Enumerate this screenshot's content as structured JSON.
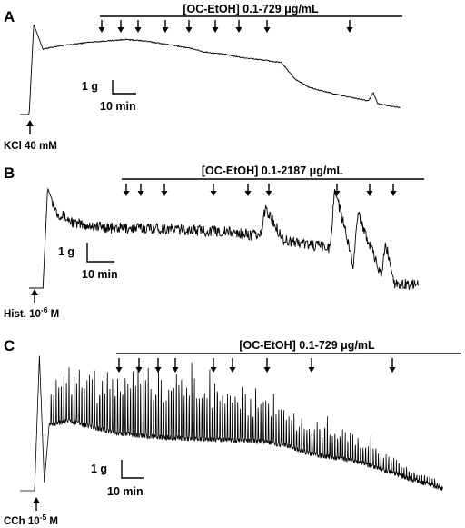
{
  "figure": {
    "panels": [
      {
        "id": "A",
        "letter": "A",
        "treatment_label": "[OC-EtOH] 0.1-729 μg/mL",
        "stimulus": {
          "agent": "KCl",
          "conc": "40 mM"
        },
        "scale_force": "1 g",
        "scale_time": "10 min",
        "noise": "low",
        "arrow_count": 9
      },
      {
        "id": "B",
        "letter": "B",
        "treatment_label": "[OC-EtOH] 0.1-2187 μg/mL",
        "stimulus": {
          "agent": "Hist. 10",
          "exp": "-6",
          "unit": " M"
        },
        "scale_force": "1 g",
        "scale_time": "10 min",
        "noise": "medium",
        "arrow_count": 10
      },
      {
        "id": "C",
        "letter": "C",
        "treatment_label": "[OC-EtOH] 0.1-729 μg/mL",
        "stimulus": {
          "agent": "CCh 10",
          "exp": "-5",
          "unit": " M"
        },
        "scale_force": "1 g",
        "scale_time": "10 min",
        "noise": "oscillatory",
        "arrow_count": 9
      }
    ]
  },
  "chart_data": [
    {
      "type": "line",
      "title": "",
      "panel": "A",
      "agonist": "KCl 40 mM",
      "treatment": "[OC-EtOH] 0.1-729 μg/mL",
      "scale_bar": {
        "force_g": 1,
        "time_min": 10
      },
      "x_unit": "min",
      "y_unit": "g",
      "series": [
        {
          "x": [
            0,
            2,
            3,
            5,
            8,
            15,
            23,
            27,
            33,
            38,
            40,
            45,
            48,
            53,
            57,
            60,
            63,
            65,
            70,
            76,
            77,
            78,
            83
          ],
          "y": [
            0,
            0,
            3.3,
            2.4,
            2.5,
            2.65,
            2.75,
            2.7,
            2.55,
            2.4,
            2.3,
            2.2,
            2.1,
            2.0,
            1.9,
            1.3,
            1.0,
            0.9,
            0.7,
            0.5,
            0.8,
            0.4,
            0.25
          ]
        }
      ]
    },
    {
      "type": "line",
      "title": "",
      "panel": "B",
      "agonist": "Hist. 10-6 M",
      "treatment": "[OC-EtOH] 0.1-2187 μg/mL",
      "scale_bar": {
        "force_g": 1,
        "time_min": 10
      },
      "x_unit": "min",
      "y_unit": "g",
      "series": [
        {
          "x": [
            0,
            3,
            4,
            6,
            10,
            18,
            27,
            35,
            43,
            50,
            51,
            55,
            60,
            65,
            66,
            70,
            71,
            76,
            77,
            79,
            84
          ],
          "y": [
            0,
            0,
            2.5,
            1.9,
            1.6,
            1.5,
            1.5,
            1.45,
            1.4,
            1.3,
            2.0,
            1.2,
            1.1,
            1.0,
            2.5,
            0.6,
            1.9,
            0.3,
            1.1,
            0.1,
            0.1
          ]
        }
      ]
    },
    {
      "type": "line",
      "title": "",
      "panel": "C",
      "agonist": "CCh 10-5 M",
      "treatment": "[OC-EtOH] 0.1-729 μg/mL",
      "scale_bar": {
        "force_g": 1,
        "time_min": 10
      },
      "x_unit": "min",
      "y_unit": "g",
      "series": [
        {
          "x": [
            0,
            3,
            4,
            5,
            6,
            10,
            20,
            30,
            40,
            50,
            55,
            60,
            70,
            80,
            87
          ],
          "y": [
            0,
            0,
            3.3,
            0.2,
            1.6,
            1.7,
            1.4,
            1.3,
            1.25,
            1.2,
            1.1,
            0.9,
            0.7,
            0.3,
            0.05
          ]
        }
      ]
    }
  ]
}
